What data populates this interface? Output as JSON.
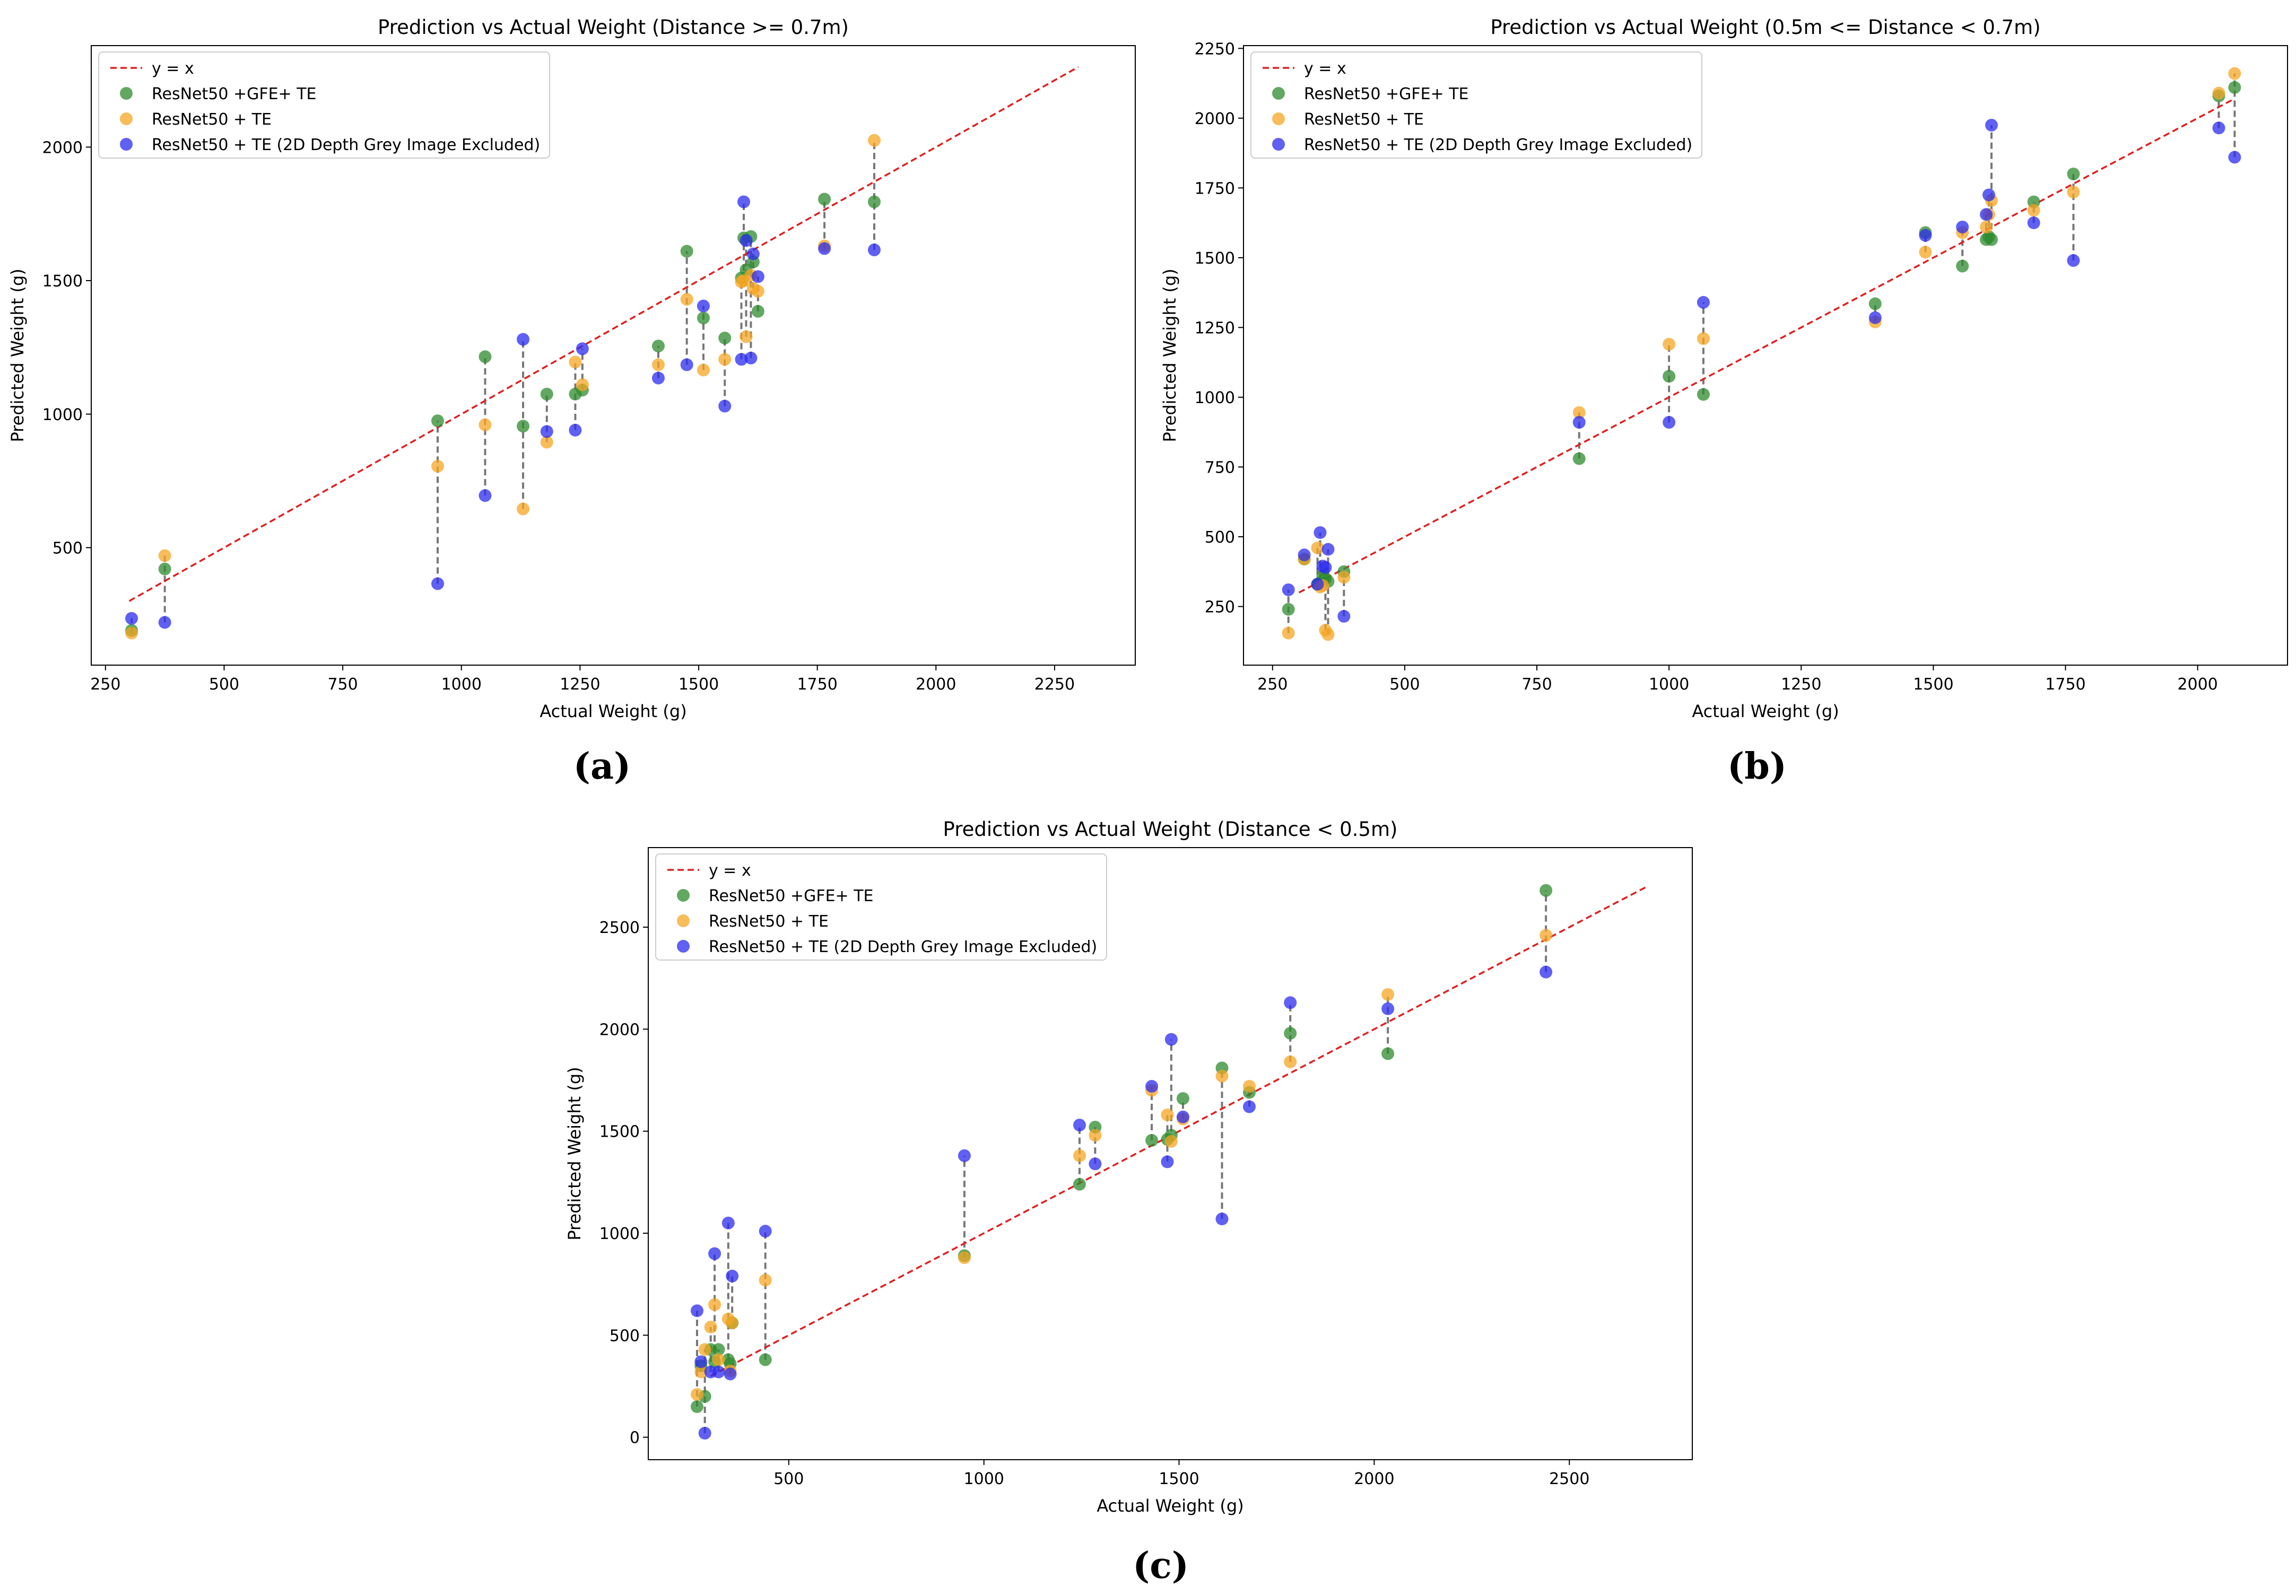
{
  "figure": {
    "legend_labels": {
      "ref": "y = x",
      "green": "ResNet50 +GFE+ TE",
      "orange": "ResNet50 + TE",
      "blue": "ResNet50 + TE (2D Depth Grey Image Excluded)"
    },
    "colors": {
      "green": "#2e8b2e",
      "orange": "#f5a623",
      "blue": "#2b2bef",
      "ref_line": "#e02020",
      "connector": "#777777"
    }
  },
  "chart_data": [
    {
      "id": "a",
      "type": "scatter",
      "caption": "(a)",
      "title": "Prediction vs Actual Weight (Distance >= 0.7m)",
      "xlabel": "Actual Weight (g)",
      "ylabel": "Predicted Weight (g)",
      "xlim": [
        220,
        2420
      ],
      "ylim": [
        60,
        2380
      ],
      "xticks": [
        250,
        500,
        750,
        1000,
        1250,
        1500,
        1750,
        2000,
        2250
      ],
      "yticks": [
        500,
        1000,
        1500,
        2000
      ],
      "ref_line": [
        300,
        2300
      ],
      "legend_loc": "upper left",
      "x": [
        305,
        375,
        950,
        1050,
        1130,
        1180,
        1240,
        1255,
        1415,
        1475,
        1510,
        1555,
        1590,
        1595,
        1600,
        1610,
        1615,
        1625,
        1765,
        1870
      ],
      "series": [
        {
          "name": "ResNet50 +GFE+ TE",
          "key": "green",
          "values": [
            190,
            420,
            975,
            1215,
            955,
            1075,
            1075,
            1090,
            1255,
            1610,
            1360,
            1285,
            1510,
            1660,
            1540,
            1665,
            1570,
            1385,
            1805,
            1795
          ]
        },
        {
          "name": "ResNet50 + TE",
          "key": "orange",
          "values": [
            180,
            470,
            805,
            960,
            645,
            895,
            1195,
            1110,
            1185,
            1430,
            1165,
            1205,
            1495,
            1500,
            1290,
            1520,
            1470,
            1460,
            1630,
            2025
          ]
        },
        {
          "name": "ResNet50 + TE (2D Depth Grey Image Excluded)",
          "key": "blue",
          "values": [
            235,
            220,
            365,
            695,
            1280,
            935,
            940,
            1245,
            1135,
            1185,
            1405,
            1030,
            1205,
            1795,
            1650,
            1210,
            1600,
            1515,
            1620,
            1615
          ]
        }
      ]
    },
    {
      "id": "b",
      "type": "scatter",
      "caption": "(b)",
      "title": "Prediction vs Actual Weight (0.5m <= Distance < 0.7m)",
      "xlabel": "Actual Weight (g)",
      "ylabel": "Predicted Weight (g)",
      "xlim": [
        195,
        2170
      ],
      "ylim": [
        40,
        2260
      ],
      "xticks": [
        250,
        500,
        750,
        1000,
        1250,
        1500,
        1750,
        2000
      ],
      "yticks": [
        250,
        500,
        750,
        1000,
        1250,
        1500,
        1750,
        2000,
        2250
      ],
      "ref_line": [
        300,
        2070
      ],
      "legend_loc": "upper left",
      "x": [
        280,
        310,
        335,
        340,
        345,
        350,
        355,
        385,
        830,
        1000,
        1065,
        1390,
        1485,
        1555,
        1600,
        1605,
        1610,
        1690,
        1765,
        2040,
        2070
      ],
      "series": [
        {
          "name": "ResNet50 +GFE+ TE",
          "key": "green",
          "values": [
            240,
            420,
            330,
            335,
            360,
            350,
            340,
            375,
            780,
            1075,
            1010,
            1335,
            1590,
            1470,
            1565,
            1575,
            1565,
            1700,
            1800,
            2080,
            2110
          ]
        },
        {
          "name": "ResNet50 + TE",
          "key": "orange",
          "values": [
            155,
            420,
            460,
            320,
            325,
            165,
            150,
            355,
            945,
            1190,
            1210,
            1270,
            1520,
            1590,
            1610,
            1655,
            1705,
            1670,
            1735,
            2090,
            2160
          ]
        },
        {
          "name": "ResNet50 + TE (2D Depth Grey Image Excluded)",
          "key": "blue",
          "values": [
            310,
            435,
            330,
            515,
            395,
            390,
            455,
            215,
            910,
            910,
            1340,
            1285,
            1580,
            1610,
            1655,
            1725,
            1975,
            1625,
            1490,
            1965,
            1860
          ]
        }
      ]
    },
    {
      "id": "c",
      "type": "scatter",
      "caption": "(c)",
      "title": "Prediction vs Actual Weight (Distance < 0.5m)",
      "xlabel": "Actual Weight (g)",
      "ylabel": "Predicted Weight (g)",
      "xlim": [
        140,
        2815
      ],
      "ylim": [
        -110,
        2890
      ],
      "xticks": [
        500,
        1000,
        1500,
        2000,
        2500
      ],
      "yticks": [
        0,
        500,
        1000,
        1500,
        2000,
        2500
      ],
      "ref_line": [
        300,
        2700
      ],
      "legend_loc": "upper left",
      "x": [
        265,
        275,
        285,
        300,
        310,
        320,
        345,
        350,
        355,
        440,
        950,
        1245,
        1285,
        1430,
        1470,
        1480,
        1510,
        1610,
        1680,
        1785,
        2035,
        2440
      ],
      "series": [
        {
          "name": "ResNet50 +GFE+ TE",
          "key": "green",
          "values": [
            150,
            350,
            200,
            430,
            370,
            430,
            380,
            360,
            560,
            380,
            890,
            1240,
            1520,
            1455,
            1460,
            1480,
            1660,
            1810,
            1690,
            1980,
            1880,
            2680
          ]
        },
        {
          "name": "ResNet50 + TE",
          "key": "orange",
          "values": [
            210,
            320,
            430,
            540,
            650,
            380,
            580,
            325,
            560,
            770,
            880,
            1380,
            1480,
            1700,
            1580,
            1450,
            1560,
            1770,
            1720,
            1840,
            2170,
            2460
          ]
        },
        {
          "name": "ResNet50 + TE (2D Depth Grey Image Excluded)",
          "key": "blue",
          "values": [
            620,
            370,
            20,
            320,
            900,
            320,
            1050,
            310,
            790,
            1010,
            1380,
            1530,
            1340,
            1720,
            1350,
            1950,
            1570,
            1070,
            1620,
            2130,
            2100,
            2280
          ]
        }
      ]
    }
  ]
}
